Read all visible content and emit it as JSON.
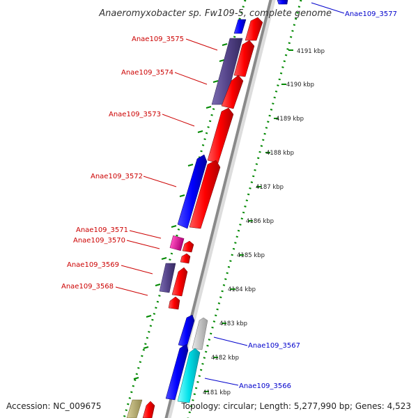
{
  "title": "Anaeromyxobacter sp. Fw109-5, complete genome",
  "accession": "Accession: NC_009675",
  "topology": "Topology: circular; Length: 5,277,990 bp; Genes: 4,523",
  "colors": {
    "forward_gene": "#ff0000",
    "reverse_gene": "#0000ff",
    "label_red": "#cc0000",
    "label_blue": "#0000cc",
    "dots": "#008800",
    "backbone": "#888888",
    "purple": "#55448a",
    "magenta": "#e0109a",
    "cyan": "#00e0e8",
    "gray": "#c8c8c8",
    "khaki": "#b8ae6e"
  },
  "kbp_ticks": [
    "4191 kbp",
    "4190 kbp",
    "4189 kbp",
    "4188 kbp",
    "4187 kbp",
    "4186 kbp",
    "4185 kbp",
    "4184 kbp",
    "4183 kbp",
    "4182 kbp",
    "4181 kbp"
  ],
  "gene_labels": {
    "anae3577": "Anae109_3577",
    "anae3575": "Anae109_3575",
    "anae3574": "Anae109_3574",
    "anae3573": "Anae109_3573",
    "anae3572": "Anae109_3572",
    "anae3571": "Anae109_3571",
    "anae3570": "Anae109_3570",
    "anae3569": "Anae109_3569",
    "anae3568": "Anae109_3568",
    "anae3567": "Anae109_3567",
    "anae3566": "Anae109_3566"
  }
}
